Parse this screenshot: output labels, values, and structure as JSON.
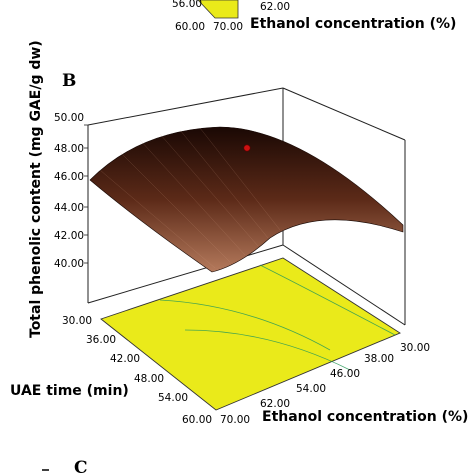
{
  "chart_data": [
    {
      "type": "surface",
      "panel": "",
      "partial": true,
      "xlabel": "Ethanol concentration (%)",
      "x_ticks": [
        "62.00",
        "70.00"
      ],
      "y_ticks": [
        "56.00",
        "60.00"
      ]
    },
    {
      "type": "surface",
      "panel": "B",
      "xlabel": "Ethanol concentration (%)",
      "ylabel": "UAE time (min)",
      "zlabel": "Total phenolic content (mg GAE/g dw)",
      "x_ticks": [
        "30.00",
        "38.00",
        "46.00",
        "54.00",
        "62.00",
        "70.00"
      ],
      "y_ticks": [
        "30.00",
        "36.00",
        "42.00",
        "48.00",
        "54.00",
        "60.00"
      ],
      "z_ticks": [
        "40.00",
        "42.00",
        "44.00",
        "46.00",
        "48.00",
        "50.00"
      ],
      "xlim": [
        30,
        70
      ],
      "ylim": [
        30,
        60
      ],
      "zlim": [
        40,
        50
      ],
      "surface_samples": [
        {
          "ethanol": 70,
          "time": 30,
          "tpc": 45.8
        },
        {
          "ethanol": 70,
          "time": 60,
          "tpc": 39.7
        },
        {
          "ethanol": 30,
          "time": 60,
          "tpc": 43.0
        },
        {
          "ethanol": 46,
          "time": 38,
          "tpc": 48.3
        }
      ],
      "design_point": {
        "ethanol": 46,
        "time": 38,
        "tpc": 48.3
      },
      "colors": {
        "surface_high": "#1a0804",
        "surface_low": "#b57a5c",
        "floor": "#eaea1a",
        "contour": "#2a9a5a",
        "point": "#cc1111"
      }
    },
    {
      "type": "surface",
      "panel": "C",
      "partial": true
    }
  ]
}
